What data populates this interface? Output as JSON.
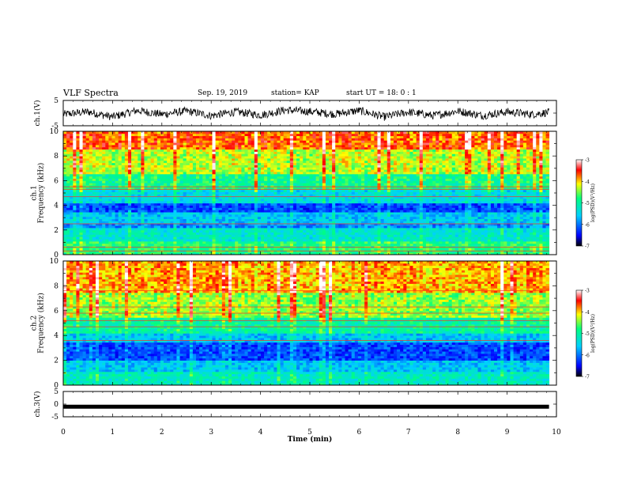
{
  "header": {
    "title": "VLF Spectra",
    "date": "Sep. 19, 2019",
    "station": "station= KAP",
    "start_ut": "start  UT  =   18: 0  : 1"
  },
  "colors": {
    "background": "#ffffff",
    "trace": "#000000",
    "colormap": [
      "#000000",
      "#0000ff",
      "#00d0ff",
      "#00ff80",
      "#ffff00",
      "#ff0000",
      "#ffffff"
    ]
  },
  "chart_data": [
    {
      "type": "line",
      "panel": "ch1-waveform",
      "ylabel": "ch.1(V)",
      "ylim": [
        -5,
        5
      ],
      "yticks": [
        "5",
        "-5"
      ],
      "x": [
        0,
        0.5,
        1,
        1.5,
        2,
        2.5,
        3,
        3.5,
        4,
        4.5,
        5,
        5.5,
        6,
        6.5,
        7,
        7.5,
        8,
        8.5,
        9,
        9.5,
        9.85
      ],
      "values": [
        -0.5,
        0.5,
        -1.5,
        1.0,
        -0.5,
        0.8,
        -1.0,
        0.5,
        -0.8,
        1.2,
        0.6,
        -0.4,
        1.0,
        -1.5,
        0.4,
        -1.0,
        0.8,
        -1.0,
        0.5,
        -0.5,
        0.3
      ],
      "xlim": [
        0,
        10
      ]
    },
    {
      "type": "heatmap",
      "panel": "ch1-spectrogram",
      "ylabel": "ch.1\nFrequency (kHz)",
      "ylim": [
        0,
        10
      ],
      "yticks": [
        "0",
        "2",
        "4",
        "6",
        "8",
        "10"
      ],
      "xlim": [
        0,
        9.85
      ],
      "colorbar": {
        "label": "log(PSD)(V²/Hz)",
        "ticks": [
          "-3",
          "-4",
          "-5",
          "-6",
          "-7"
        ],
        "range": [
          -7,
          -3
        ]
      },
      "bands_khz": [
        {
          "fmin": 0.0,
          "fmax": 1.0,
          "level": -4.8
        },
        {
          "fmin": 1.0,
          "fmax": 2.2,
          "level": -5.3
        },
        {
          "fmin": 2.2,
          "fmax": 2.6,
          "level": -5.9
        },
        {
          "fmin": 2.6,
          "fmax": 3.5,
          "level": -5.6
        },
        {
          "fmin": 3.5,
          "fmax": 4.2,
          "level": -6.2
        },
        {
          "fmin": 4.2,
          "fmax": 5.2,
          "level": -5.4
        },
        {
          "fmin": 5.2,
          "fmax": 6.5,
          "level": -4.9
        },
        {
          "fmin": 6.5,
          "fmax": 8.5,
          "level": -4.3
        },
        {
          "fmin": 8.5,
          "fmax": 10.0,
          "level": -3.7
        }
      ],
      "tones_khz": [
        0.3,
        0.6,
        2.5,
        4.7,
        5.3,
        5.5
      ]
    },
    {
      "type": "heatmap",
      "panel": "ch2-spectrogram",
      "ylabel": "ch.2\nFrequency (kHz)",
      "ylim": [
        0,
        10
      ],
      "yticks": [
        "0",
        "2",
        "4",
        "6",
        "8",
        "10"
      ],
      "xlim": [
        0,
        9.85
      ],
      "colorbar": {
        "label": "log(PSD)(V²/Hz)",
        "ticks": [
          "-3",
          "-4",
          "-5",
          "-6",
          "-7"
        ],
        "range": [
          -7,
          -3
        ]
      },
      "bands_khz": [
        {
          "fmin": 0.0,
          "fmax": 1.0,
          "level": -5.2
        },
        {
          "fmin": 1.0,
          "fmax": 2.0,
          "level": -5.6
        },
        {
          "fmin": 2.0,
          "fmax": 3.5,
          "level": -6.2
        },
        {
          "fmin": 3.5,
          "fmax": 4.2,
          "level": -5.6
        },
        {
          "fmin": 4.2,
          "fmax": 5.5,
          "level": -5.0
        },
        {
          "fmin": 5.5,
          "fmax": 7.5,
          "level": -4.4
        },
        {
          "fmin": 7.5,
          "fmax": 10.0,
          "level": -3.9
        }
      ],
      "tones_khz": [
        3.6,
        4.7,
        5.2,
        5.8,
        6.3,
        7.6
      ]
    },
    {
      "type": "line",
      "panel": "ch3-waveform",
      "ylabel": "ch.3(V)",
      "ylim": [
        -5,
        5
      ],
      "yticks": [
        "5",
        "0",
        "-5"
      ],
      "x": [
        0,
        9.85
      ],
      "values": [
        -1.0,
        -1.0
      ],
      "xlim": [
        0,
        10
      ],
      "xlabel": "Time (min)",
      "xticks": [
        "0",
        "1",
        "2",
        "3",
        "4",
        "5",
        "6",
        "7",
        "8",
        "9",
        "10"
      ]
    }
  ]
}
